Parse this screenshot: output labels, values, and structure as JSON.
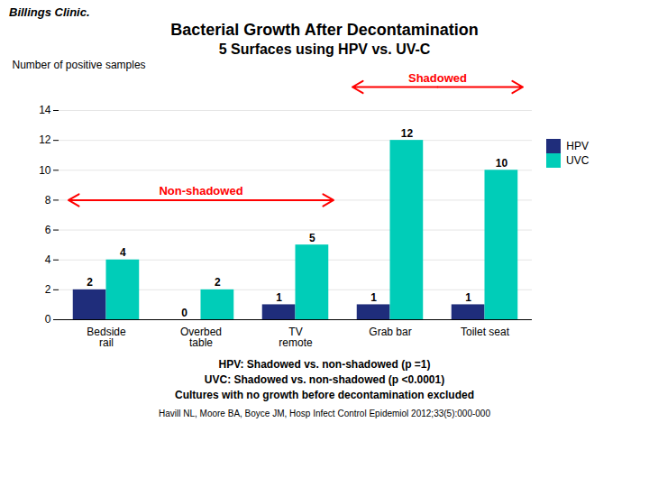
{
  "chart_data": {
    "type": "bar",
    "title": "Bacterial Growth After Decontamination",
    "subtitle": "5 Surfaces using HPV vs. UV-C",
    "ylabel": "Number of positive samples",
    "categories": [
      "Bedside\nrail",
      "Overbed\ntable",
      "TV\nremote",
      "Grab bar",
      "Toilet seat"
    ],
    "series": [
      {
        "name": "HPV",
        "color": "#1F2D7B",
        "values": [
          2,
          0,
          1,
          1,
          1
        ]
      },
      {
        "name": "UVC",
        "color": "#00CDB8",
        "values": [
          4,
          2,
          5,
          12,
          10
        ]
      }
    ],
    "ylim": [
      0,
      14
    ],
    "yticks": [
      0,
      2,
      4,
      6,
      8,
      10,
      12,
      14
    ],
    "grid": true,
    "legend": "right",
    "data_labels": true,
    "annotations": [
      {
        "text": "Non-shadowed",
        "span": [
          "Bedside\nrail",
          "TV\nremote"
        ],
        "y": 8,
        "color": "red"
      },
      {
        "text": "Shadowed",
        "span": [
          "Grab bar",
          "Toilet seat"
        ],
        "color": "red"
      },
      {
        "text": "Billings Clinic."
      },
      {
        "text": "HPV: Shadowed vs. non-shadowed (p =1)"
      },
      {
        "text": "UVC: Shadowed vs. non-shadowed (p <0.0001)"
      },
      {
        "text": "Cultures with no growth before decontamination excluded"
      },
      {
        "text": "Havill NL, Moore BA, Boyce JM, Hosp Infect Control Epidemiol 2012;33(5):000-000"
      }
    ]
  }
}
